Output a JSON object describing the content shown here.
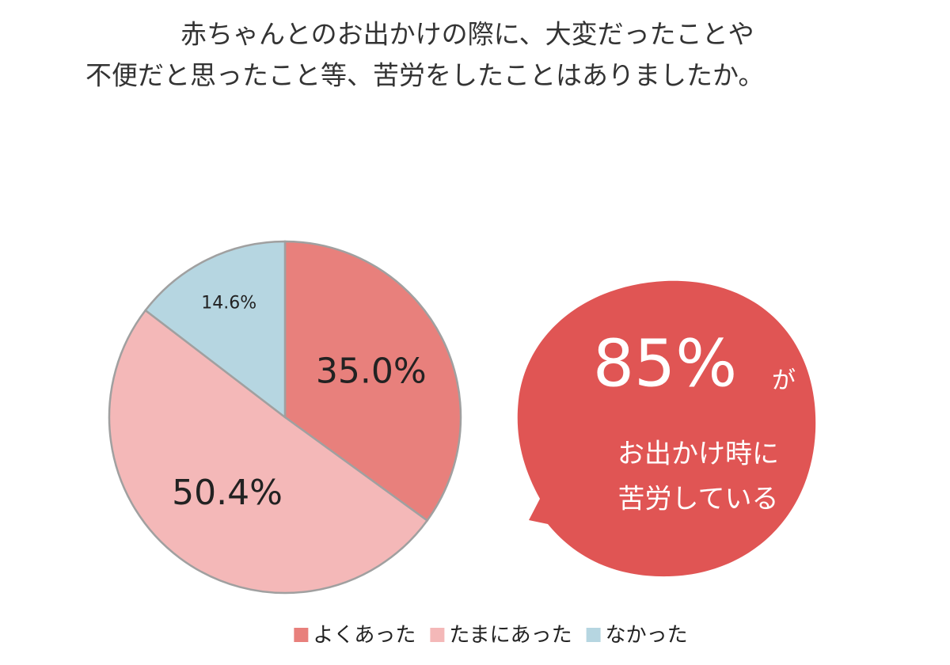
{
  "chart_data": {
    "type": "pie",
    "title": [
      "赤ちゃんとのお出かけの際に、大変だったことや",
      "不便だと思ったこと等、苦労をしたことはありましたか。"
    ],
    "categories": [
      "よくあった",
      "たまにあった",
      "なかった"
    ],
    "values": [
      35.0,
      50.4,
      14.6
    ],
    "value_labels": [
      "35.0%",
      "50.4%",
      "14.6%"
    ],
    "colors": [
      "#e8807c",
      "#f4b8b8",
      "#b6d6e1"
    ],
    "legend": "bottom",
    "annotation": {
      "text": "85%",
      "suffix": "が",
      "lines": [
        "お出かけ時に",
        "苦労している"
      ]
    }
  }
}
